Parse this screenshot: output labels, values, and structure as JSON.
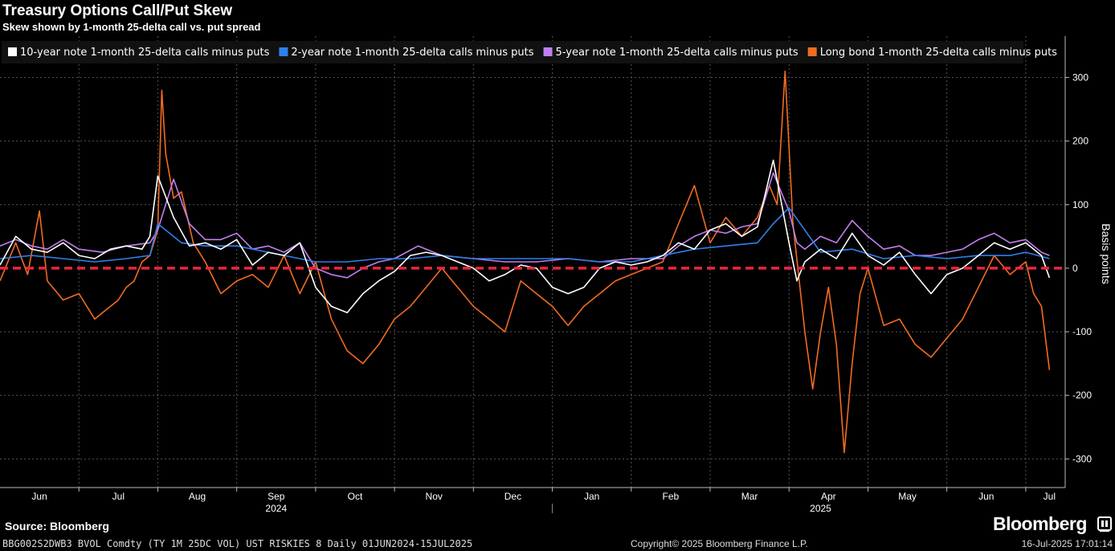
{
  "header": {
    "title": "Treasury Options Call/Put Skew",
    "subtitle": "Skew shown by 1-month 25-delta call vs. put spread"
  },
  "footer": {
    "source": "Source: Bloomberg",
    "ticker": "BBG002S2DWB3 BVOL Comdty (TY 1M 25DC VOL) UST RISKIES 8  Daily 01JUN2024-15JUL2025",
    "copyright": "Copyright© 2025 Bloomberg Finance L.P.",
    "timestamp": "16-Jul-2025 17:01:14",
    "brand": "Bloomberg"
  },
  "colors": {
    "background": "#000000",
    "ten_year": "#ffffff",
    "two_year": "#2f80ed",
    "five_year": "#c17ef0",
    "long_bond": "#f26b21",
    "zero_line": "#e8263c",
    "grid": "#555555"
  },
  "chart_data": {
    "type": "line",
    "title": "Treasury Options Call/Put Skew",
    "ylabel": "Basis points",
    "ylim": [
      -345,
      365
    ],
    "yticks": [
      300,
      200,
      100,
      0,
      -100,
      -200,
      -300
    ],
    "ytick_labels": [
      "300",
      "200",
      "100",
      "0",
      "-100",
      "-200",
      "-300"
    ],
    "x_range": [
      0,
      13.5
    ],
    "month_ticks": [
      {
        "label": "Jun",
        "x": 0.5
      },
      {
        "label": "Jul",
        "x": 1.5
      },
      {
        "label": "Aug",
        "x": 2.5
      },
      {
        "label": "Sep",
        "x": 3.5
      },
      {
        "label": "Oct",
        "x": 4.5
      },
      {
        "label": "Nov",
        "x": 5.5
      },
      {
        "label": "Dec",
        "x": 6.5
      },
      {
        "label": "Jan",
        "x": 7.5
      },
      {
        "label": "Feb",
        "x": 8.5
      },
      {
        "label": "Mar",
        "x": 9.5
      },
      {
        "label": "Apr",
        "x": 10.5
      },
      {
        "label": "May",
        "x": 11.5
      },
      {
        "label": "Jun",
        "x": 12.5
      },
      {
        "label": "Jul",
        "x": 13.3
      }
    ],
    "year_labels": [
      {
        "label": "2024",
        "x": 3.5
      },
      {
        "label": "2025",
        "x": 10.4
      }
    ],
    "year_divider_x": 7.0,
    "reference_line": {
      "y": 0,
      "style": "dashed"
    },
    "legend_position": "top-left",
    "series": [
      {
        "name": "10-year note 1-month 25-delta calls minus puts",
        "color": "#ffffff",
        "x": [
          0,
          0.2,
          0.4,
          0.6,
          0.8,
          1.0,
          1.2,
          1.4,
          1.6,
          1.8,
          1.9,
          2.0,
          2.2,
          2.4,
          2.6,
          2.8,
          3.0,
          3.2,
          3.4,
          3.6,
          3.8,
          4.0,
          4.2,
          4.4,
          4.6,
          4.8,
          5.0,
          5.2,
          5.4,
          5.6,
          5.8,
          6.0,
          6.2,
          6.4,
          6.6,
          6.8,
          7.0,
          7.2,
          7.4,
          7.6,
          7.8,
          8.0,
          8.2,
          8.4,
          8.6,
          8.8,
          9.0,
          9.2,
          9.4,
          9.6,
          9.8,
          10.0,
          10.1,
          10.2,
          10.4,
          10.6,
          10.8,
          11.0,
          11.2,
          11.4,
          11.6,
          11.8,
          12.0,
          12.2,
          12.4,
          12.6,
          12.8,
          13.0,
          13.2,
          13.3
        ],
        "values": [
          5,
          50,
          30,
          25,
          40,
          20,
          15,
          30,
          35,
          30,
          50,
          145,
          80,
          35,
          40,
          30,
          45,
          5,
          25,
          20,
          40,
          -30,
          -60,
          -70,
          -40,
          -20,
          -5,
          20,
          25,
          20,
          10,
          0,
          -20,
          -10,
          5,
          0,
          -30,
          -40,
          -30,
          0,
          10,
          5,
          10,
          20,
          40,
          30,
          60,
          70,
          50,
          65,
          170,
          40,
          -20,
          10,
          30,
          15,
          55,
          20,
          5,
          25,
          -10,
          -40,
          -10,
          0,
          20,
          40,
          30,
          40,
          20,
          -15
        ]
      },
      {
        "name": "2-year note 1-month 25-delta calls minus puts",
        "color": "#2f80ed",
        "x": [
          0,
          0.4,
          0.8,
          1.2,
          1.6,
          1.9,
          2.0,
          2.3,
          2.6,
          3.0,
          3.4,
          3.8,
          4.0,
          4.4,
          4.8,
          5.2,
          5.6,
          6.0,
          6.4,
          6.8,
          7.2,
          7.6,
          8.0,
          8.4,
          8.8,
          9.2,
          9.6,
          9.8,
          10.0,
          10.4,
          10.8,
          11.2,
          11.6,
          12.0,
          12.4,
          12.8,
          13.0,
          13.3
        ],
        "values": [
          15,
          20,
          15,
          10,
          15,
          20,
          70,
          40,
          35,
          35,
          25,
          15,
          10,
          10,
          15,
          15,
          20,
          15,
          15,
          15,
          15,
          10,
          10,
          20,
          30,
          35,
          40,
          70,
          95,
          25,
          30,
          15,
          20,
          15,
          20,
          20,
          25,
          15
        ]
      },
      {
        "name": "5-year note 1-month 25-delta calls minus puts",
        "color": "#c17ef0",
        "x": [
          0,
          0.2,
          0.4,
          0.6,
          0.8,
          1.0,
          1.3,
          1.6,
          1.9,
          2.0,
          2.2,
          2.4,
          2.6,
          2.8,
          3.0,
          3.2,
          3.4,
          3.6,
          3.8,
          4.0,
          4.2,
          4.4,
          4.6,
          4.8,
          5.0,
          5.3,
          5.6,
          6.0,
          6.4,
          6.8,
          7.2,
          7.6,
          8.0,
          8.4,
          8.6,
          8.8,
          9.0,
          9.2,
          9.4,
          9.6,
          9.8,
          10.0,
          10.1,
          10.2,
          10.4,
          10.6,
          10.8,
          11.0,
          11.2,
          11.4,
          11.6,
          11.8,
          12.0,
          12.2,
          12.4,
          12.6,
          12.8,
          13.0,
          13.2,
          13.3
        ],
        "values": [
          35,
          45,
          35,
          30,
          45,
          30,
          25,
          35,
          40,
          60,
          140,
          70,
          45,
          45,
          55,
          30,
          35,
          25,
          40,
          0,
          -10,
          -15,
          0,
          10,
          15,
          35,
          20,
          15,
          10,
          10,
          15,
          10,
          15,
          15,
          35,
          50,
          60,
          55,
          65,
          70,
          150,
          90,
          40,
          30,
          50,
          40,
          75,
          50,
          30,
          35,
          20,
          20,
          25,
          30,
          45,
          55,
          40,
          45,
          25,
          20
        ]
      },
      {
        "name": "Long bond 1-month 25-delta calls minus puts",
        "color": "#f26b21",
        "x": [
          0,
          0.2,
          0.35,
          0.5,
          0.6,
          0.8,
          1.0,
          1.2,
          1.3,
          1.4,
          1.5,
          1.6,
          1.7,
          1.8,
          1.9,
          2.0,
          2.05,
          2.1,
          2.2,
          2.3,
          2.45,
          2.6,
          2.8,
          3.0,
          3.2,
          3.4,
          3.6,
          3.8,
          4.0,
          4.2,
          4.4,
          4.6,
          4.8,
          5.0,
          5.2,
          5.4,
          5.6,
          5.8,
          6.0,
          6.2,
          6.4,
          6.6,
          6.8,
          7.0,
          7.2,
          7.4,
          7.6,
          7.8,
          8.0,
          8.2,
          8.4,
          8.6,
          8.8,
          9.0,
          9.2,
          9.4,
          9.6,
          9.75,
          9.85,
          9.95,
          10.05,
          10.2,
          10.3,
          10.4,
          10.5,
          10.6,
          10.7,
          10.8,
          10.9,
          11.0,
          11.2,
          11.4,
          11.6,
          11.8,
          12.0,
          12.2,
          12.4,
          12.6,
          12.8,
          13.0,
          13.1,
          13.2,
          13.3
        ],
        "values": [
          -20,
          40,
          -10,
          90,
          -20,
          -50,
          -40,
          -80,
          -70,
          -60,
          -50,
          -30,
          -20,
          10,
          20,
          60,
          280,
          180,
          110,
          120,
          40,
          10,
          -40,
          -20,
          -10,
          -30,
          20,
          -40,
          10,
          -80,
          -130,
          -150,
          -120,
          -80,
          -60,
          -30,
          0,
          -30,
          -60,
          -80,
          -100,
          -20,
          -40,
          -60,
          -90,
          -60,
          -40,
          -20,
          -10,
          0,
          10,
          70,
          130,
          40,
          80,
          50,
          80,
          130,
          100,
          310,
          70,
          -100,
          -190,
          -100,
          -30,
          -120,
          -290,
          -150,
          -40,
          0,
          -90,
          -80,
          -120,
          -140,
          -110,
          -80,
          -30,
          20,
          -10,
          10,
          -40,
          -60,
          -160
        ]
      }
    ]
  }
}
